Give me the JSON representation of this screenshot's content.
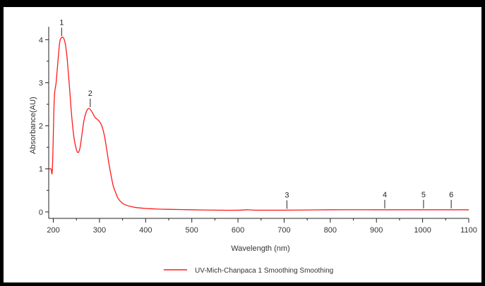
{
  "chart_data": {
    "type": "line",
    "title": "",
    "xlabel": "Wavelength (nm)",
    "ylabel": "Absorbance(AU)",
    "xlim": [
      190,
      1100
    ],
    "ylim": [
      -0.15,
      4.3
    ],
    "grid": false,
    "legend_position": "bottom-center",
    "x_ticks": [
      200,
      300,
      400,
      500,
      600,
      700,
      800,
      900,
      1000,
      1100
    ],
    "x_tick_labels": [
      "200",
      "300",
      "400",
      "500",
      "600",
      "700",
      "800",
      "900",
      "1000",
      "1100"
    ],
    "y_ticks": [
      0,
      1,
      2,
      3,
      4
    ],
    "y_tick_labels": [
      "0",
      "1",
      "2",
      "3",
      "4"
    ],
    "series": [
      {
        "name": "UV-Mich-Chanpaca 1 Smoothing Smoothing",
        "color": "#ff1a1a",
        "x": [
          190,
          195,
          198,
          202,
          206,
          210,
          214,
          218,
          222,
          226,
          230,
          235,
          240,
          245,
          250,
          254,
          258,
          262,
          266,
          270,
          274,
          278,
          282,
          286,
          290,
          295,
          300,
          305,
          310,
          315,
          320,
          325,
          330,
          335,
          340,
          350,
          360,
          370,
          380,
          400,
          420,
          450,
          500,
          560,
          600,
          620,
          640,
          700,
          800,
          900,
          1000,
          1100
        ],
        "values": [
          1.0,
          1.0,
          1.0,
          2.6,
          3.0,
          3.5,
          3.95,
          4.05,
          4.04,
          3.9,
          3.55,
          2.9,
          2.2,
          1.7,
          1.45,
          1.38,
          1.5,
          1.8,
          2.1,
          2.28,
          2.38,
          2.4,
          2.35,
          2.28,
          2.2,
          2.15,
          2.1,
          2.0,
          1.8,
          1.5,
          1.15,
          0.85,
          0.6,
          0.45,
          0.32,
          0.2,
          0.15,
          0.12,
          0.1,
          0.08,
          0.07,
          0.06,
          0.05,
          0.04,
          0.04,
          0.05,
          0.04,
          0.04,
          0.05,
          0.05,
          0.05,
          0.05
        ]
      }
    ],
    "peaks": [
      {
        "label": "1",
        "x": 218,
        "y": 4.05
      },
      {
        "label": "2",
        "x": 280,
        "y": 2.4
      },
      {
        "label": "3",
        "x": 706,
        "y": 0.04
      },
      {
        "label": "4",
        "x": 918,
        "y": 0.05
      },
      {
        "label": "5",
        "x": 1002,
        "y": 0.05
      },
      {
        "label": "6",
        "x": 1062,
        "y": 0.05
      }
    ]
  }
}
